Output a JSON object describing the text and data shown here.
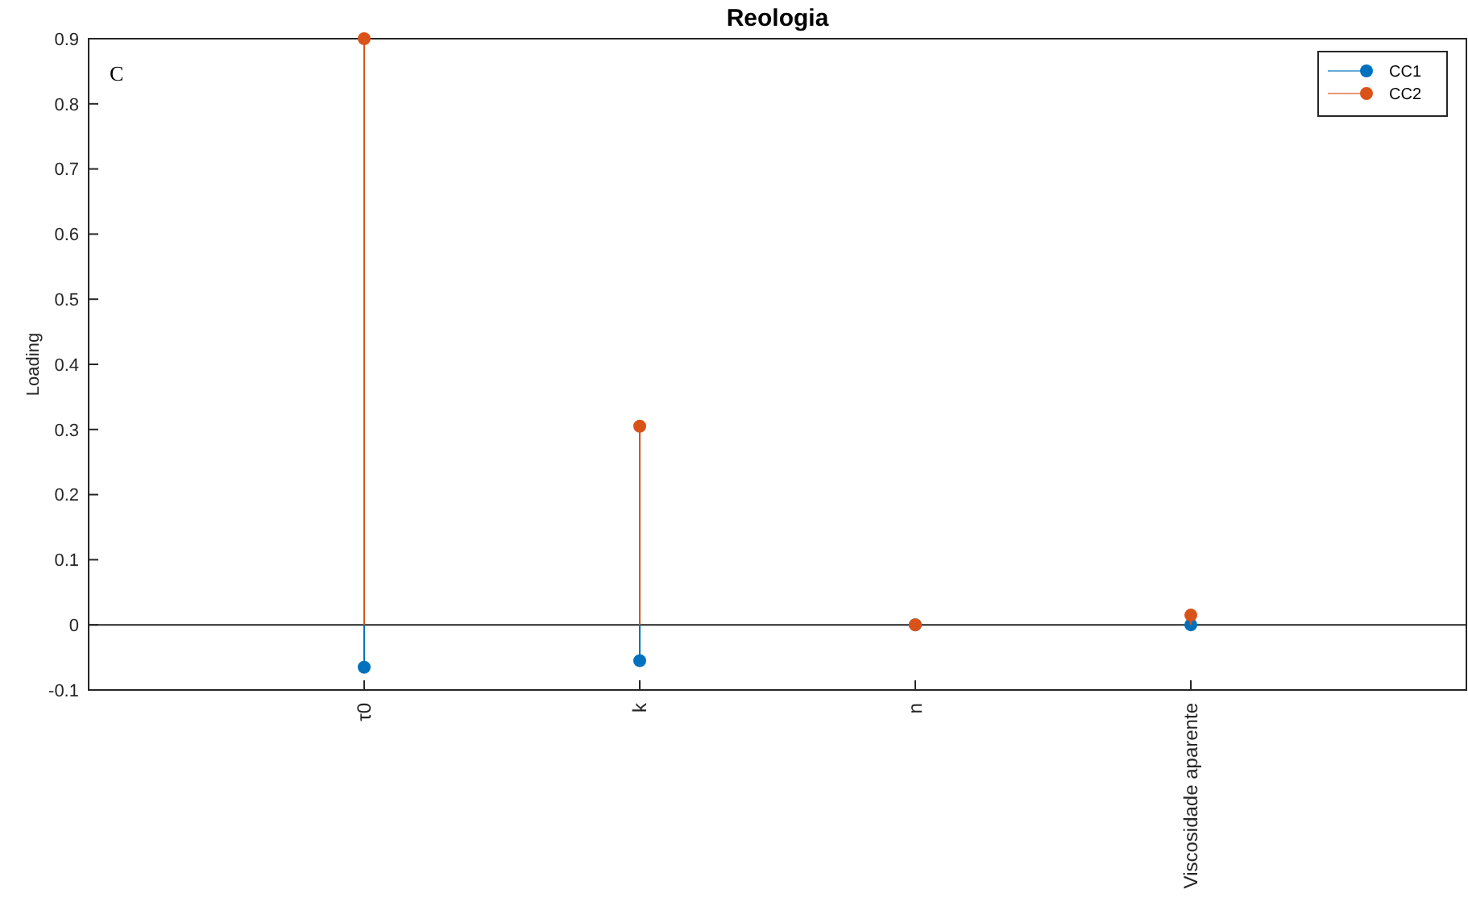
{
  "chart_data": {
    "type": "lollipop",
    "title": "Reologia",
    "ylabel": "Loading",
    "annotations": [
      "C"
    ],
    "categories": [
      "τ0",
      "k",
      "n",
      "Viscosidade aparente"
    ],
    "series": [
      {
        "name": "CC1",
        "color": "#0072bd",
        "values": [
          -0.065,
          -0.055,
          0,
          0
        ]
      },
      {
        "name": "CC2",
        "color": "#d95319",
        "values": [
          0.9,
          0.305,
          0,
          0.015
        ]
      }
    ],
    "ylim": [
      -0.1,
      0.9
    ],
    "yticks": [
      -0.1,
      0,
      0.1,
      0.2,
      0.3,
      0.4,
      0.5,
      0.6,
      0.7,
      0.8,
      0.9
    ],
    "ref_lines": [
      {
        "axis": "y",
        "value": 0,
        "color": "#262626"
      }
    ],
    "legend": "top right",
    "marker": "circle",
    "grid": false
  }
}
